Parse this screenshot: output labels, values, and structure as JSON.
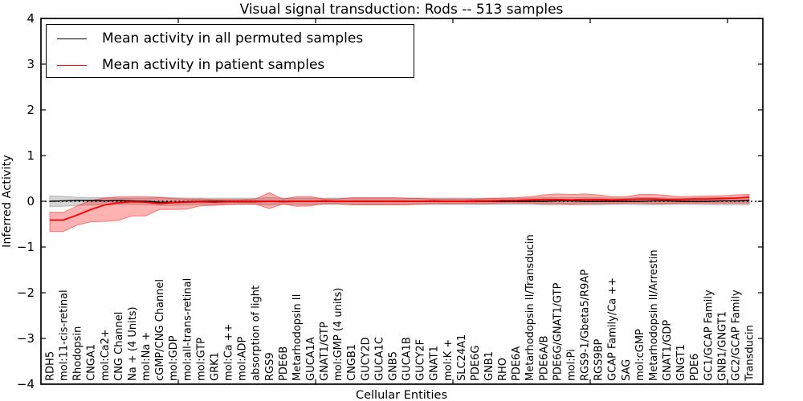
{
  "chart_data": {
    "type": "line",
    "title": "Visual signal transduction: Rods -- 513 samples",
    "xlabel": "Cellular Entities",
    "ylabel": "Inferred Activity",
    "ylim": [
      -4,
      4
    ],
    "yticks": [
      -4,
      -3,
      -2,
      -1,
      0,
      1,
      2,
      3,
      4
    ],
    "grid": false,
    "legend": {
      "position": "upper left",
      "entries": [
        {
          "label": "Mean activity in all permuted samples",
          "color": "#000000"
        },
        {
          "label": "Mean activity in patient samples",
          "color": "#ff0000"
        }
      ]
    },
    "zero_line": {
      "y": 0,
      "style": "dotted",
      "color": "#000000"
    },
    "categories": [
      "RDH5",
      "mol:11-cis-retinal",
      "Rhodopsin",
      "CNGA1",
      "mol:Ca2+",
      "CNG Channel",
      "Na + (4 Units)",
      "mol:Na +",
      "cGMP/CNG Channel",
      "mol:GDP",
      "mol:all-trans-retinal",
      "mol:GTP",
      "GRK1",
      "mol:Ca ++",
      "mol:ADP",
      "absorption of light",
      "RGS9",
      "PDE6B",
      "Metarhodopsin II",
      "GUCA1A",
      "GNAT1/GTP",
      "mol:GMP (4 units)",
      "CNGB1",
      "GUCY2D",
      "GUCA1C",
      "GNB5",
      "GUCA1B",
      "GUCY2F",
      "GNAT1",
      "mol:K +",
      "SLC24A1",
      "PDE6G",
      "GNB1",
      "RHO",
      "PDE6A",
      "Metarhodopsin II/Transducin",
      "PDE6A/B",
      "PDE6G/GNAT1/GTP",
      "mol:Pi",
      "RGS9-1/Gbeta5/R9AP",
      "RGS9BP",
      "GCAP Family/Ca ++",
      "SAG",
      "mol:cGMP",
      "Metarhodopsin II/Arrestin",
      "GNAT1/GDP",
      "GNGT1",
      "PDE6",
      "GC1/GCAP Family",
      "GNB1/GNGT1",
      "GC2/GCAP Family",
      "Transducin"
    ],
    "series": [
      {
        "name": "Mean activity in all permuted samples",
        "color": "#000000",
        "band_color": "#888888",
        "band_alpha": 0.35,
        "values": [
          0.0,
          0.01,
          0.02,
          0.02,
          0.01,
          0.02,
          0.01,
          0.0,
          -0.02,
          -0.02,
          -0.01,
          0,
          0,
          0,
          0,
          0,
          0,
          0,
          0,
          0,
          0,
          0,
          0,
          0,
          0,
          0,
          0,
          0,
          0,
          0,
          0,
          0,
          0,
          0,
          0,
          0,
          0,
          0.01,
          0.01,
          0,
          0,
          0,
          0,
          0,
          0.01,
          0.01,
          0,
          0,
          0,
          0.01,
          0.01,
          0.02
        ],
        "band_lower": [
          -0.12,
          -0.11,
          -0.09,
          -0.08,
          -0.08,
          -0.07,
          -0.07,
          -0.07,
          -0.09,
          -0.09,
          -0.08,
          -0.07,
          -0.07,
          -0.07,
          -0.07,
          -0.07,
          -0.08,
          -0.07,
          -0.07,
          -0.07,
          -0.07,
          -0.07,
          -0.07,
          -0.07,
          -0.07,
          -0.07,
          -0.07,
          -0.07,
          -0.07,
          -0.07,
          -0.07,
          -0.07,
          -0.07,
          -0.07,
          -0.07,
          -0.07,
          -0.08,
          -0.08,
          -0.08,
          -0.08,
          -0.08,
          -0.07,
          -0.07,
          -0.08,
          -0.08,
          -0.07,
          -0.07,
          -0.07,
          -0.08,
          -0.08,
          -0.08,
          -0.08
        ],
        "band_upper": [
          0.12,
          0.11,
          0.09,
          0.08,
          0.08,
          0.07,
          0.07,
          0.07,
          0.08,
          0.08,
          0.07,
          0.07,
          0.07,
          0.07,
          0.07,
          0.07,
          0.08,
          0.07,
          0.07,
          0.07,
          0.07,
          0.07,
          0.07,
          0.07,
          0.07,
          0.07,
          0.07,
          0.07,
          0.07,
          0.07,
          0.07,
          0.07,
          0.07,
          0.07,
          0.07,
          0.07,
          0.08,
          0.08,
          0.08,
          0.08,
          0.08,
          0.07,
          0.07,
          0.08,
          0.08,
          0.07,
          0.07,
          0.07,
          0.08,
          0.08,
          0.08,
          0.08
        ]
      },
      {
        "name": "Mean activity in patient samples",
        "color": "#ff0000",
        "band_color": "#ff0000",
        "band_alpha": 0.3,
        "values": [
          -0.41,
          -0.41,
          -0.3,
          -0.18,
          -0.08,
          -0.03,
          -0.01,
          -0.02,
          -0.05,
          -0.03,
          -0.02,
          -0.01,
          -0.02,
          -0.01,
          -0.01,
          -0.01,
          0,
          -0.01,
          0,
          0,
          0.01,
          0,
          0,
          0,
          0,
          0,
          0,
          0,
          0.01,
          0,
          0,
          0.01,
          0.01,
          0.02,
          0.02,
          0.03,
          0.04,
          0.04,
          0.03,
          0.04,
          0.04,
          0.03,
          0.04,
          0.05,
          0.05,
          0.04,
          0.04,
          0.05,
          0.05,
          0.06,
          0.07,
          0.09
        ],
        "band_lower": [
          -0.66,
          -0.66,
          -0.52,
          -0.45,
          -0.44,
          -0.42,
          -0.32,
          -0.32,
          -0.18,
          -0.18,
          -0.17,
          -0.1,
          -0.09,
          -0.07,
          -0.06,
          -0.06,
          -0.16,
          -0.06,
          -0.11,
          -0.1,
          -0.05,
          -0.05,
          -0.08,
          -0.08,
          -0.08,
          -0.08,
          -0.08,
          -0.06,
          -0.05,
          -0.05,
          -0.05,
          -0.05,
          -0.05,
          -0.04,
          -0.04,
          -0.04,
          -0.05,
          -0.05,
          -0.06,
          -0.05,
          -0.05,
          -0.05,
          -0.04,
          -0.04,
          -0.05,
          -0.05,
          -0.04,
          -0.04,
          -0.04,
          -0.04,
          -0.04,
          -0.04
        ],
        "band_upper": [
          -0.24,
          -0.24,
          -0.1,
          0.02,
          0.07,
          0.1,
          0.1,
          0.1,
          0.09,
          0.06,
          0.05,
          0.05,
          0.04,
          0.04,
          0.04,
          0.05,
          0.19,
          0.05,
          0.1,
          0.1,
          0.05,
          0.05,
          0.08,
          0.08,
          0.08,
          0.08,
          0.07,
          0.06,
          0.05,
          0.05,
          0.05,
          0.05,
          0.06,
          0.07,
          0.08,
          0.1,
          0.14,
          0.16,
          0.15,
          0.16,
          0.14,
          0.1,
          0.1,
          0.15,
          0.15,
          0.13,
          0.1,
          0.11,
          0.12,
          0.12,
          0.14,
          0.15
        ]
      }
    ]
  }
}
